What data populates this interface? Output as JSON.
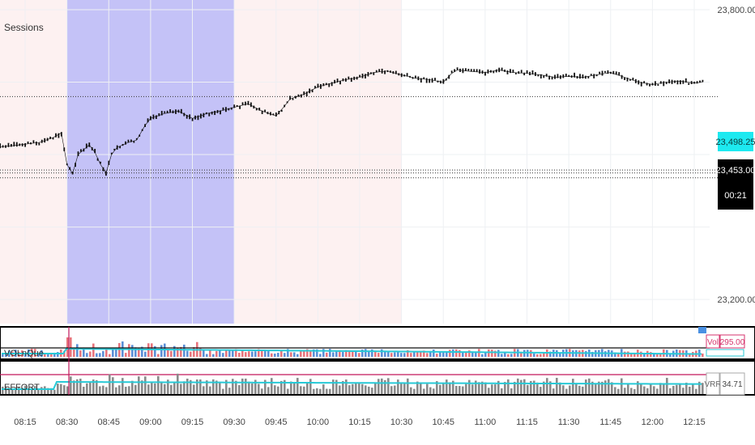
{
  "chart_data": [
    {
      "type": "line",
      "title": "Sessions",
      "x_ticks": [
        "08:15",
        "08:30",
        "08:45",
        "09:00",
        "09:15",
        "09:30",
        "09:45",
        "10:00",
        "10:15",
        "10:30",
        "10:45",
        "11:00",
        "11:15",
        "11:30",
        "11:45",
        "12:00",
        "12:15"
      ],
      "y_ticks": [
        "23,800.00",
        "23,200.00"
      ],
      "ylim": [
        23150,
        23820
      ],
      "grid": true,
      "price_labels": {
        "level": "23,498.25",
        "last": "23,453.00",
        "countdown": "00:21"
      },
      "price_levels": [
        23620,
        23468,
        23462,
        23452
      ],
      "shaded_sessions": [
        {
          "from": "07:48",
          "to": "08:30",
          "color": "#fdf1f1"
        },
        {
          "from": "08:30",
          "to": "09:30",
          "color": "#c4c2f7"
        },
        {
          "from": "09:30",
          "to": "10:30",
          "color": "#fdf1f1"
        }
      ],
      "series": [
        {
          "x": [
            "07:50",
            "08:00",
            "08:10",
            "08:20",
            "08:25",
            "08:28",
            "08:30",
            "08:32",
            "08:34",
            "08:36",
            "08:38",
            "08:40",
            "08:42",
            "08:44",
            "08:46",
            "08:48",
            "08:50",
            "08:52",
            "08:55",
            "08:58",
            "09:00",
            "09:05",
            "09:10",
            "09:15",
            "09:18",
            "09:20",
            "09:25",
            "09:30",
            "09:35",
            "09:40",
            "09:45",
            "09:48",
            "09:50",
            "09:55",
            "10:00",
            "10:05",
            "10:10",
            "10:15",
            "10:20",
            "10:25",
            "10:30",
            "10:35",
            "10:40",
            "10:45",
            "10:48",
            "10:50",
            "10:55",
            "11:00",
            "11:05",
            "11:10",
            "11:15",
            "11:20",
            "11:25",
            "11:30",
            "11:35",
            "11:40",
            "11:45",
            "11:50",
            "11:55",
            "12:00",
            "12:05",
            "12:10",
            "12:15",
            "12:18"
          ],
          "values": [
            23510,
            23513,
            23518,
            23525,
            23535,
            23545,
            23480,
            23460,
            23500,
            23510,
            23520,
            23505,
            23480,
            23462,
            23500,
            23515,
            23520,
            23525,
            23530,
            23560,
            23575,
            23585,
            23590,
            23575,
            23580,
            23585,
            23590,
            23598,
            23605,
            23590,
            23580,
            23600,
            23615,
            23625,
            23640,
            23648,
            23655,
            23660,
            23670,
            23673,
            23665,
            23658,
            23655,
            23650,
            23668,
            23675,
            23672,
            23670,
            23675,
            23670,
            23668,
            23665,
            23660,
            23662,
            23660,
            23665,
            23670,
            23660,
            23650,
            23645,
            23650,
            23652,
            23648,
            23650
          ]
        }
      ]
    },
    {
      "type": "bar",
      "title": "VOLnQue",
      "badge_label": "Vol",
      "badge_value": "295.00",
      "note": "volume histogram with moving-average line"
    },
    {
      "type": "bar",
      "title": "EFFORT",
      "badge_label": "VRR",
      "badge_value": "34.71",
      "note": "effort histogram with moving-average line"
    }
  ]
}
